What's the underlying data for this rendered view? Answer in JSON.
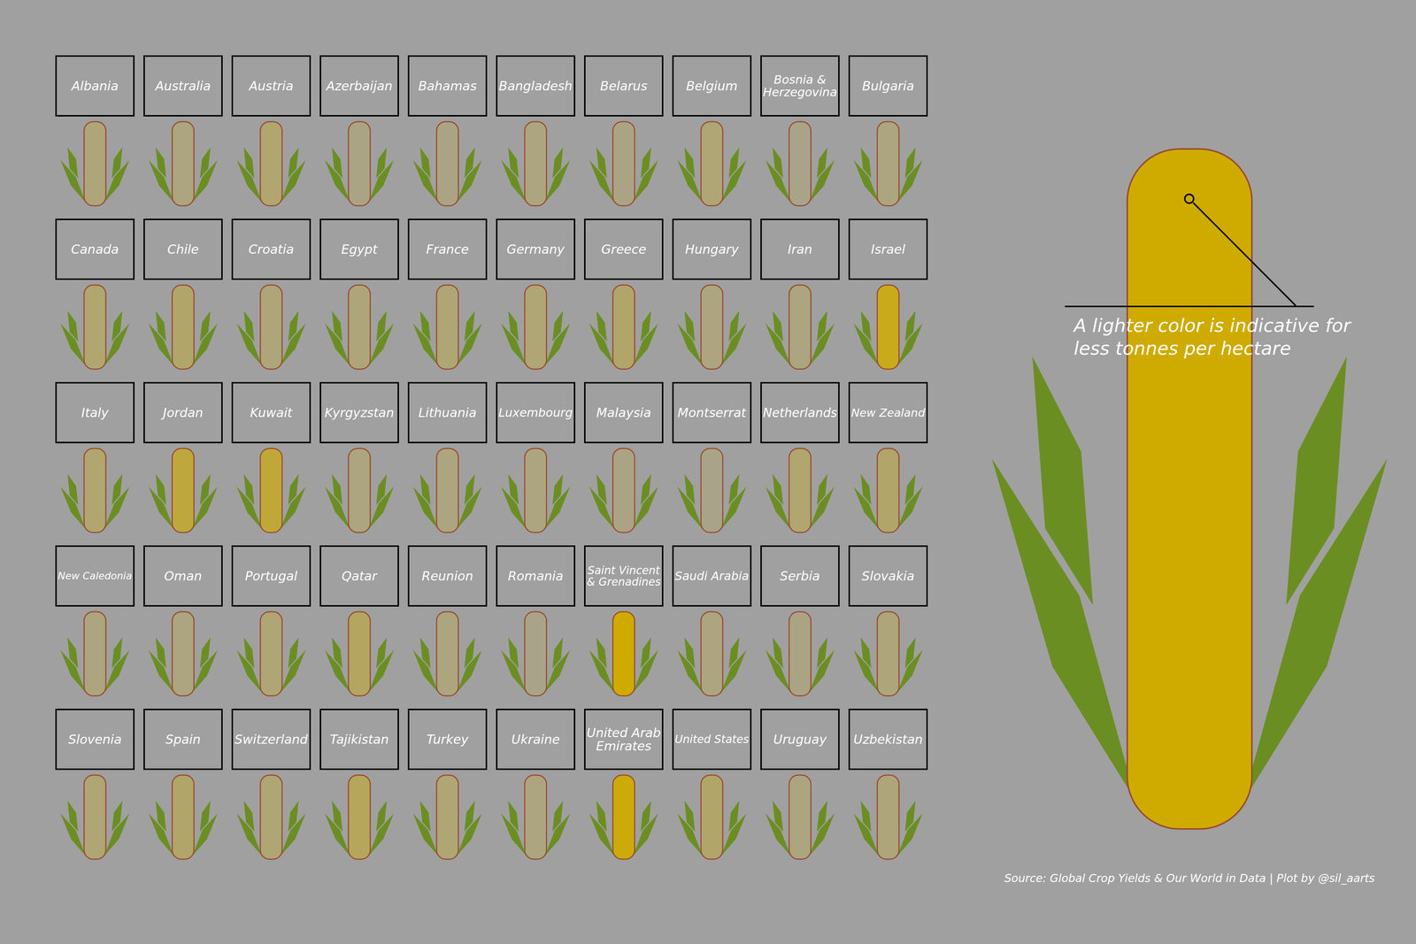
{
  "chart_data": {
    "type": "pictogram",
    "categories": [
      "Albania",
      "Australia",
      "Austria",
      "Azerbaijan",
      "Bahamas",
      "Bangladesh",
      "Belarus",
      "Belgium",
      "Bosnia & Herzegovina",
      "Bulgaria",
      "Canada",
      "Chile",
      "Croatia",
      "Egypt",
      "France",
      "Germany",
      "Greece",
      "Hungary",
      "Iran",
      "Israel",
      "Italy",
      "Jordan",
      "Kuwait",
      "Kyrgyzstan",
      "Lithuania",
      "Luxembourg",
      "Malaysia",
      "Montserrat",
      "Netherlands",
      "New Zealand",
      "New Caledonia",
      "Oman",
      "Portugal",
      "Qatar",
      "Reunion",
      "Romania",
      "Saint Vincent & Grenadines",
      "Saudi Arabia",
      "Serbia",
      "Slovakia",
      "Slovenia",
      "Spain",
      "Switzerland",
      "Tajikistan",
      "Turkey",
      "Ukraine",
      "United Arab Emirates",
      "United States",
      "Uruguay",
      "Uzbekistan"
    ],
    "values": [
      8,
      7,
      10,
      6,
      6,
      7,
      6,
      9,
      5,
      7,
      10,
      11,
      8,
      8,
      9,
      9,
      11,
      7,
      7,
      27,
      10,
      20,
      21,
      7,
      7,
      7,
      6,
      5,
      10,
      11,
      7,
      7,
      9,
      13,
      7,
      5,
      32,
      7,
      6,
      8,
      9,
      11,
      9,
      14,
      9,
      7,
      30,
      11,
      7,
      8
    ],
    "color": "#cfab00",
    "color_range": [
      0,
      32
    ],
    "annotation_lines": [
      "A lighter color is indicative for",
      "less tonnes per hectare"
    ],
    "source": "Source: Global Crop Yields & Our World in Data | Plot by @sil_aarts"
  }
}
